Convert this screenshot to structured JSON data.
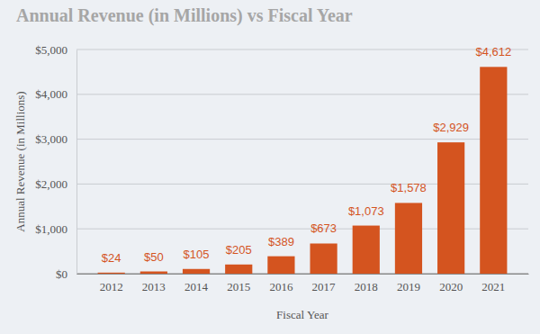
{
  "chart_data": {
    "type": "bar",
    "title": "Annual Revenue (in Millions) vs Fiscal Year",
    "x_label": "Fiscal Year",
    "y_label": "Annual Revenue (in Millions)",
    "categories": [
      "2012",
      "2013",
      "2014",
      "2015",
      "2016",
      "2017",
      "2018",
      "2019",
      "2020",
      "2021"
    ],
    "values": [
      24,
      50,
      105,
      205,
      389,
      673,
      1073,
      1578,
      2929,
      4612
    ],
    "value_labels": [
      "$24",
      "$50",
      "$105",
      "$205",
      "$389",
      "$673",
      "$1,073",
      "$1,578",
      "$2,929",
      "$4,612"
    ],
    "color": "#d4541f",
    "ylim": [
      0,
      5000
    ],
    "yticks": [
      {
        "value": 0,
        "label": "$0"
      },
      {
        "value": 1000,
        "label": "$1,000"
      },
      {
        "value": 2000,
        "label": "$2,000"
      },
      {
        "value": 3000,
        "label": "$3,000"
      },
      {
        "value": 4000,
        "label": "$4,000"
      },
      {
        "value": 5000,
        "label": "$5,000"
      }
    ],
    "grid": true,
    "data_labels": true
  }
}
